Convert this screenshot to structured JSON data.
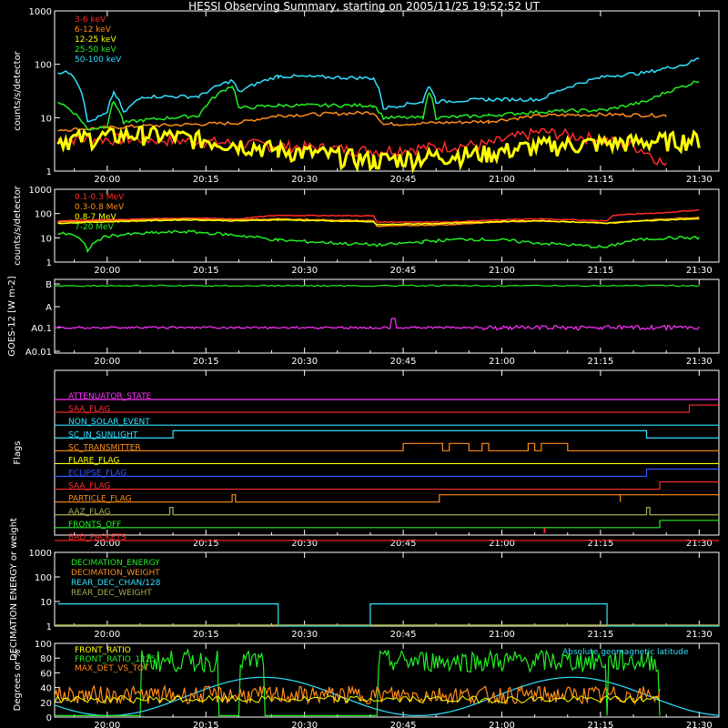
{
  "title": "HESSI Observing Summary, starting on 2005/11/25 19:52:52 UT",
  "colors": {
    "red": "#ff2a2a",
    "orange": "#ff8c1a",
    "yellow": "#ffff00",
    "green": "#22ee22",
    "cyan": "#33e0ff",
    "magenta": "#ff33ff",
    "blue": "#3355ff",
    "olive": "#aaaa55",
    "white": "#ffffff"
  },
  "time_axis": {
    "start_min": -8,
    "end_min": 93,
    "ticks": [
      {
        "min": 0,
        "label": "20:00"
      },
      {
        "min": 15,
        "label": "20:15"
      },
      {
        "min": 30,
        "label": "20:30"
      },
      {
        "min": 45,
        "label": "20:45"
      },
      {
        "min": 60,
        "label": "21:00"
      },
      {
        "min": 75,
        "label": "21:15"
      },
      {
        "min": 90,
        "label": "21:30"
      }
    ]
  },
  "chart_data": [
    {
      "type": "line",
      "ylabel": "counts/s/detector",
      "yscale": "log",
      "ylim": [
        1,
        1000
      ],
      "yticks": [
        "1",
        "10",
        "100",
        "1000"
      ],
      "legend_position": "top-left",
      "series": [
        {
          "name": "3-6 keV",
          "color": "red",
          "segments": [
            [
              -7.5,
              4
            ],
            [
              -5.5,
              4
            ],
            [
              5.5,
              4
            ],
            [
              26,
              3
            ],
            [
              40.5,
              2.4
            ],
            [
              58,
              3.2
            ],
            [
              66,
              5.5
            ],
            [
              80,
              3
            ],
            [
              85,
              1.2
            ]
          ]
        },
        {
          "name": "6-12 keV",
          "color": "orange",
          "segments": [
            [
              -7.5,
              6
            ],
            [
              -5.5,
              6
            ],
            [
              5.5,
              7
            ],
            [
              20,
              8
            ],
            [
              26,
              11
            ],
            [
              40.5,
              12.5
            ],
            [
              42,
              7.5
            ],
            [
              58,
              8.5
            ],
            [
              66,
              11
            ],
            [
              76,
              11.5
            ],
            [
              85,
              11
            ]
          ]
        },
        {
          "name": "12-25 keV",
          "color": "yellow",
          "segments": [
            [
              -7.5,
              4
            ],
            [
              -5.5,
              4
            ],
            [
              5.5,
              5
            ],
            [
              26,
              2.5
            ],
            [
              40.5,
              1.6
            ],
            [
              58,
              2.2
            ],
            [
              66,
              3
            ],
            [
              80,
              3.5
            ],
            [
              90,
              4
            ]
          ]
        },
        {
          "name": "25-50 keV",
          "color": "green",
          "segments": [
            [
              -7.5,
              20
            ],
            [
              -3,
              6
            ],
            [
              0,
              7
            ],
            [
              1,
              20
            ],
            [
              2.5,
              8
            ],
            [
              5.5,
              9
            ],
            [
              14,
              11
            ],
            [
              19,
              40
            ],
            [
              20,
              15
            ],
            [
              26,
              17
            ],
            [
              40.5,
              17
            ],
            [
              42,
              10
            ],
            [
              48,
              10
            ],
            [
              49,
              30
            ],
            [
              50,
              10
            ],
            [
              58,
              11
            ],
            [
              66,
              13
            ],
            [
              76,
              14
            ],
            [
              82,
              20
            ],
            [
              88,
              40
            ],
            [
              90,
              50
            ]
          ]
        },
        {
          "name": "50-100 keV",
          "color": "cyan",
          "segments": [
            [
              -7.5,
              70
            ],
            [
              -5.5,
              70
            ],
            [
              -3,
              8
            ],
            [
              0,
              12
            ],
            [
              1,
              30
            ],
            [
              2.5,
              12
            ],
            [
              5.5,
              25
            ],
            [
              14,
              25
            ],
            [
              19,
              50
            ],
            [
              20,
              30
            ],
            [
              26,
              60
            ],
            [
              40.5,
              55
            ],
            [
              42,
              15
            ],
            [
              48,
              20
            ],
            [
              49,
              40
            ],
            [
              50,
              20
            ],
            [
              58,
              22
            ],
            [
              66,
              22
            ],
            [
              76,
              60
            ],
            [
              82,
              70
            ],
            [
              88,
              100
            ],
            [
              90,
              130
            ]
          ]
        }
      ]
    },
    {
      "type": "line",
      "ylabel": "counts/s/detector",
      "yscale": "log",
      "ylim": [
        1,
        1000
      ],
      "yticks": [
        "1",
        "10",
        "100",
        "1000"
      ],
      "legend_position": "top-left",
      "series": [
        {
          "name": "0.1-0.3 MeV",
          "color": "red",
          "points": [
            [
              -7.5,
              50
            ],
            [
              5.5,
              60
            ],
            [
              12,
              65
            ],
            [
              20,
              60
            ],
            [
              26,
              85
            ],
            [
              40.5,
              80
            ],
            [
              41,
              45
            ],
            [
              52,
              45
            ],
            [
              60,
              55
            ],
            [
              66,
              60
            ],
            [
              76,
              50
            ],
            [
              77,
              85
            ],
            [
              85,
              110
            ],
            [
              90,
              140
            ]
          ]
        },
        {
          "name": "0.3-0.8 MeV",
          "color": "orange",
          "points": [
            [
              -7.5,
              45
            ],
            [
              5.5,
              55
            ],
            [
              12,
              60
            ],
            [
              20,
              55
            ],
            [
              26,
              60
            ],
            [
              40.5,
              50
            ],
            [
              41,
              30
            ],
            [
              52,
              35
            ],
            [
              60,
              45
            ],
            [
              66,
              50
            ],
            [
              76,
              40
            ],
            [
              85,
              60
            ],
            [
              90,
              70
            ]
          ]
        },
        {
          "name": "0.8-7 MeV",
          "color": "yellow",
          "points": [
            [
              -7.5,
              40
            ],
            [
              5.5,
              50
            ],
            [
              12,
              55
            ],
            [
              20,
              50
            ],
            [
              26,
              55
            ],
            [
              40.5,
              45
            ],
            [
              41,
              35
            ],
            [
              52,
              40
            ],
            [
              60,
              48
            ],
            [
              66,
              50
            ],
            [
              76,
              40
            ],
            [
              85,
              55
            ],
            [
              90,
              60
            ]
          ]
        },
        {
          "name": "7-20 MeV",
          "color": "green",
          "points": [
            [
              -7.5,
              15
            ],
            [
              -5.5,
              15
            ],
            [
              -3,
              3
            ],
            [
              0,
              12
            ],
            [
              7,
              16
            ],
            [
              12,
              18
            ],
            [
              18,
              14
            ],
            [
              26,
              8
            ],
            [
              35,
              6
            ],
            [
              42,
              5
            ],
            [
              48,
              7
            ],
            [
              55,
              9
            ],
            [
              60,
              8
            ],
            [
              66,
              6
            ],
            [
              76,
              4
            ],
            [
              80,
              8
            ],
            [
              85,
              10
            ],
            [
              90,
              10
            ]
          ]
        }
      ]
    },
    {
      "type": "line",
      "ylabel": "GOES-12 [W m-2]",
      "yticks": [
        "A0.01",
        "A0.1",
        "A",
        "B"
      ],
      "series": [
        {
          "name": "",
          "color": "green",
          "note_level": "B"
        },
        {
          "name": "",
          "color": "magenta",
          "note_level": "A0.1",
          "spike_min": 43.5
        }
      ]
    },
    {
      "type": "line",
      "ylabel": "Flags",
      "flags": [
        {
          "name": "ATTENUATOR_STATE",
          "color": "magenta",
          "steps": []
        },
        {
          "name": "SAA_FLAG",
          "color": "red",
          "steps": [
            [
              88.5,
              1
            ]
          ]
        },
        {
          "name": "NON_SOLAR_EVENT",
          "color": "cyan",
          "steps": []
        },
        {
          "name": "SC_IN_SUNLIGHT",
          "color": "cyan",
          "steps": [
            [
              10,
              1
            ],
            [
              82,
              0
            ]
          ]
        },
        {
          "name": "SC_TRANSMITTER",
          "color": "orange",
          "steps": [
            [
              45,
              1
            ],
            [
              51,
              0
            ],
            [
              52,
              1
            ],
            [
              55,
              0
            ],
            [
              57,
              1
            ],
            [
              58,
              0
            ],
            [
              64,
              1
            ],
            [
              65,
              0
            ],
            [
              66,
              1
            ],
            [
              70,
              0
            ]
          ]
        },
        {
          "name": "FLARE_FLAG",
          "color": "yellow",
          "steps": []
        },
        {
          "name": "ECLIPSE_FLAG",
          "color": "blue",
          "steps": [
            [
              10,
              0
            ],
            [
              82,
              1
            ]
          ]
        },
        {
          "name": "SAA_FLAG",
          "color": "red",
          "steps": [
            [
              84,
              1
            ]
          ]
        },
        {
          "name": "PARTICLE_FLAG",
          "color": "orange",
          "steps": [
            [
              19,
              1
            ],
            [
              19.5,
              0
            ],
            [
              50.5,
              1
            ],
            [
              78,
              0
            ],
            [
              78,
              1
            ],
            [
              80,
              1
            ]
          ]
        },
        {
          "name": "AAZ_FLAG",
          "color": "olive",
          "steps": [
            [
              9.5,
              1
            ],
            [
              10,
              0
            ],
            [
              82,
              1
            ],
            [
              82.5,
              0
            ]
          ]
        },
        {
          "name": "FRONTS_OFF",
          "color": "green",
          "steps": [
            [
              5.5,
              0
            ],
            [
              84,
              1
            ]
          ]
        },
        {
          "name": "BAD_PACKETS",
          "color": "red",
          "steps": []
        }
      ]
    },
    {
      "type": "line",
      "ylabel": "DECIMATION ENERGY or weight",
      "yscale": "log",
      "ylim": [
        1,
        1000
      ],
      "yticks": [
        "1",
        "10",
        "100",
        "1000"
      ],
      "series": [
        {
          "name": "DECIMATION_ENERGY",
          "color": "green",
          "level": 1
        },
        {
          "name": "DECIMATION_WEIGHT",
          "color": "orange",
          "level": 1
        },
        {
          "name": "REAR_DEC_CHAN/128",
          "color": "cyan",
          "segments": [
            [
              -7.5,
              8
            ],
            [
              26,
              8
            ],
            [
              26,
              1
            ],
            [
              40,
              1
            ],
            [
              40,
              8
            ],
            [
              76,
              8
            ],
            [
              76,
              1
            ]
          ]
        },
        {
          "name": "REAR_DEC_WEIGHT",
          "color": "olive",
          "level": 1
        }
      ]
    },
    {
      "type": "line",
      "ylabel": "Degrees or %",
      "ylim": [
        0,
        100
      ],
      "yticks": [
        "0",
        "20",
        "40",
        "60",
        "80",
        "100"
      ],
      "series": [
        {
          "name": "FRONT_RATIO",
          "color": "yellow"
        },
        {
          "name": "FRONT_RATIO_1225",
          "color": "green"
        },
        {
          "name": "MAX_DET_VS_TOT",
          "color": "orange"
        },
        {
          "name": "Absolute geomagnetic latitude",
          "color": "cyan"
        }
      ]
    }
  ]
}
